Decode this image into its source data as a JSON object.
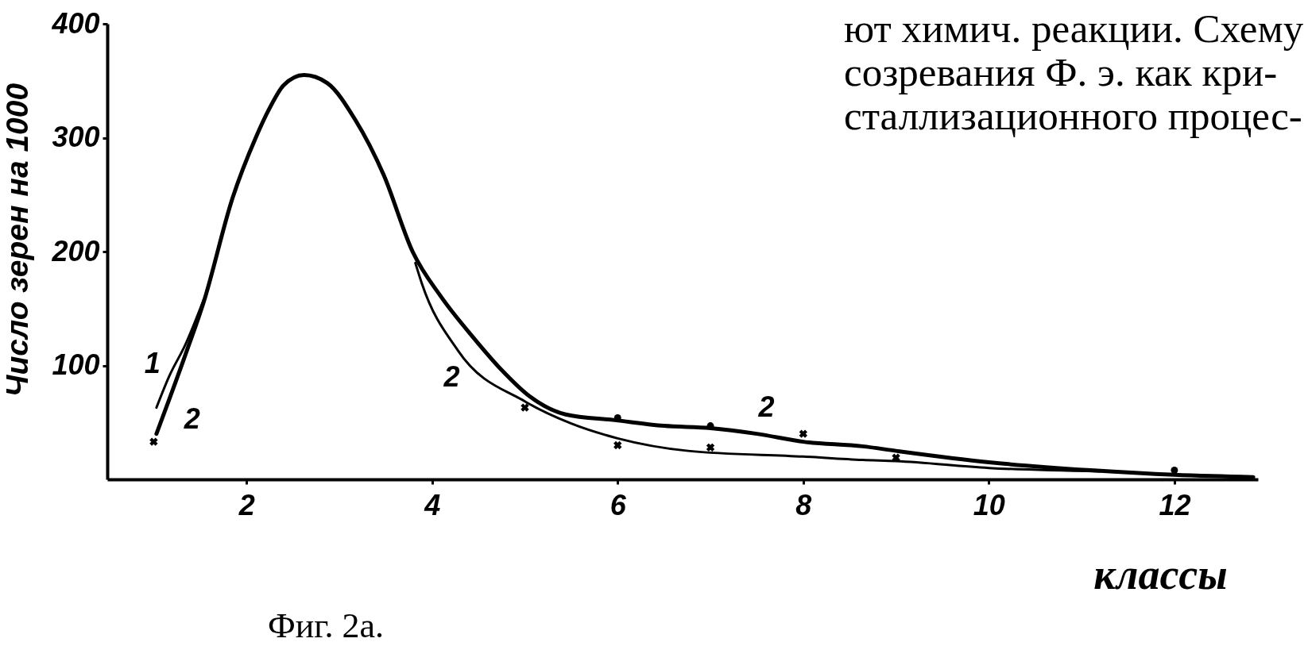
{
  "chart_data": {
    "type": "line",
    "xlabel": "классы",
    "ylabel": "Число зерен на 1000",
    "xlim": [
      0.5,
      12.9
    ],
    "ylim": [
      0,
      400
    ],
    "xticks": [
      2,
      4,
      6,
      8,
      10,
      12
    ],
    "yticks": [
      100,
      200,
      300,
      400
    ],
    "series": [
      {
        "name": "1",
        "color": "#000000",
        "x": [
          1.03,
          1.17,
          1.34,
          1.54
        ],
        "values": [
          63,
          91,
          118,
          158
        ]
      },
      {
        "name": "2",
        "color": "#000000",
        "x": [
          1.03,
          1.34,
          1.54,
          1.85,
          2.1,
          2.25,
          2.4,
          2.62,
          2.87,
          3.17,
          3.48,
          3.79,
          4.1,
          4.45,
          4.75,
          5.05,
          5.44,
          5.97,
          6.5,
          7.0,
          7.5,
          8.0,
          8.64,
          9.0,
          10.0,
          11.1,
          12.0,
          12.85
        ],
        "values": [
          40,
          109,
          156,
          247,
          300,
          326,
          346,
          355,
          348,
          316,
          267,
          200,
          160,
          124,
          96,
          73,
          57,
          52,
          47,
          45,
          40,
          33,
          29,
          25,
          15,
          8,
          4,
          2
        ]
      },
      {
        "name": "2",
        "color": "#000000",
        "x": [
          3.82,
          3.89,
          4.28,
          5.01,
          5.5,
          6.0,
          6.76,
          8.0,
          8.64,
          9.0,
          10.0,
          11.2
        ],
        "values": [
          190,
          172,
          113,
          68,
          49,
          36,
          25,
          20,
          17,
          16,
          10,
          7
        ]
      },
      {
        "type": "scatter",
        "marker": "cross",
        "color": "#000000",
        "x": [
          1,
          5,
          6,
          7,
          8,
          9
        ],
        "values": [
          33,
          63,
          30,
          28,
          40,
          19
        ]
      },
      {
        "type": "scatter",
        "marker": "circle",
        "color": "#000000",
        "x": [
          6,
          7,
          12
        ],
        "values": [
          54,
          47,
          8
        ]
      }
    ],
    "annotations": [
      "ют химич. реакции. Схему",
      "созревания Ф. э. как кри-",
      "сталлизационного процес-",
      "Фиг. 2а."
    ]
  }
}
